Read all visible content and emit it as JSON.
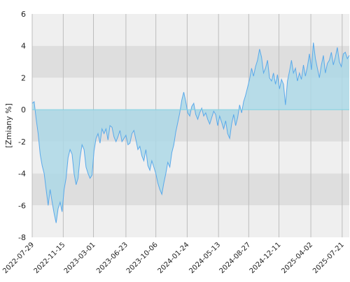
{
  "chart_data": {
    "type": "area",
    "title": "",
    "xlabel": "",
    "ylabel": "[Zmiany %]",
    "ylim": [
      -8,
      6
    ],
    "yticks": [
      6,
      4,
      2,
      0,
      -2,
      -4,
      -6,
      -8
    ],
    "x_start": "2022-07-29",
    "x_end": "2025-08-15",
    "xtick_labels": [
      "2022-07-29",
      "2022-11-15",
      "2023-03-01",
      "2023-06-23",
      "2023-10-06",
      "2024-01-24",
      "2024-05-13",
      "2024-08-27",
      "2024-12-11",
      "2025-04-02",
      "2025-07-21"
    ],
    "grid": true,
    "legend": "none",
    "colors": {
      "line": "#5aa9ea",
      "fill": "#add8e6",
      "band_light": "#efefef",
      "band_dark": "#dedede",
      "zero_line": "#7fd1e0"
    },
    "series": [
      {
        "x": [
          "2022-07-29",
          "2022-08-05",
          "2022-08-12",
          "2022-08-19",
          "2022-08-26",
          "2022-09-02",
          "2022-09-09",
          "2022-09-16",
          "2022-09-23",
          "2022-09-30",
          "2022-10-07",
          "2022-10-14",
          "2022-10-21",
          "2022-10-28",
          "2022-11-04",
          "2022-11-11",
          "2022-11-18",
          "2022-11-25",
          "2022-12-02",
          "2022-12-09",
          "2022-12-16",
          "2022-12-23",
          "2022-12-30",
          "2023-01-06",
          "2023-01-13",
          "2023-01-20",
          "2023-01-27",
          "2023-02-03",
          "2023-02-10",
          "2023-02-17",
          "2023-02-24",
          "2023-03-03",
          "2023-03-10",
          "2023-03-17",
          "2023-03-24",
          "2023-03-31",
          "2023-04-07",
          "2023-04-14",
          "2023-04-21",
          "2023-04-28",
          "2023-05-05",
          "2023-05-12",
          "2023-05-19",
          "2023-05-26",
          "2023-06-02",
          "2023-06-09",
          "2023-06-16",
          "2023-06-23",
          "2023-06-30",
          "2023-07-07",
          "2023-07-14",
          "2023-07-21",
          "2023-07-28",
          "2023-08-04",
          "2023-08-11",
          "2023-08-18",
          "2023-08-25",
          "2023-09-01",
          "2023-09-08",
          "2023-09-15",
          "2023-09-22",
          "2023-09-29",
          "2023-10-06",
          "2023-10-13",
          "2023-10-20",
          "2023-10-27",
          "2023-11-03",
          "2023-11-10",
          "2023-11-17",
          "2023-11-24",
          "2023-12-01",
          "2023-12-08",
          "2023-12-15",
          "2023-12-22",
          "2023-12-29",
          "2024-01-05",
          "2024-01-12",
          "2024-01-19",
          "2024-01-26",
          "2024-02-02",
          "2024-02-09",
          "2024-02-16",
          "2024-02-23",
          "2024-03-01",
          "2024-03-08",
          "2024-03-15",
          "2024-03-22",
          "2024-03-29",
          "2024-04-05",
          "2024-04-12",
          "2024-04-19",
          "2024-04-26",
          "2024-05-03",
          "2024-05-10",
          "2024-05-17",
          "2024-05-24",
          "2024-05-31",
          "2024-06-07",
          "2024-06-14",
          "2024-06-21",
          "2024-06-28",
          "2024-07-05",
          "2024-07-12",
          "2024-07-19",
          "2024-07-26",
          "2024-08-02",
          "2024-08-09",
          "2024-08-16",
          "2024-08-23",
          "2024-08-30",
          "2024-09-06",
          "2024-09-13",
          "2024-09-20",
          "2024-09-27",
          "2024-10-04",
          "2024-10-11",
          "2024-10-18",
          "2024-10-25",
          "2024-11-01",
          "2024-11-08",
          "2024-11-15",
          "2024-11-22",
          "2024-11-29",
          "2024-12-06",
          "2024-12-13",
          "2024-12-20",
          "2024-12-27",
          "2025-01-03",
          "2025-01-10",
          "2025-01-17",
          "2025-01-24",
          "2025-01-31",
          "2025-02-07",
          "2025-02-14",
          "2025-02-21",
          "2025-02-28",
          "2025-03-07",
          "2025-03-14",
          "2025-03-21",
          "2025-03-28",
          "2025-04-04",
          "2025-04-11",
          "2025-04-18",
          "2025-04-25",
          "2025-05-02",
          "2025-05-09",
          "2025-05-16",
          "2025-05-23",
          "2025-05-30",
          "2025-06-06",
          "2025-06-13",
          "2025-06-20",
          "2025-06-27",
          "2025-07-04",
          "2025-07-11",
          "2025-07-18",
          "2025-07-25",
          "2025-08-01",
          "2025-08-08",
          "2025-08-15"
        ],
        "y": [
          0.4,
          0.5,
          -0.6,
          -1.5,
          -2.8,
          -3.5,
          -4.0,
          -5.0,
          -6.0,
          -5.0,
          -5.8,
          -6.5,
          -7.1,
          -6.2,
          -5.8,
          -6.4,
          -5.0,
          -4.3,
          -3.0,
          -2.5,
          -2.8,
          -4.0,
          -4.7,
          -4.3,
          -3.0,
          -2.2,
          -2.5,
          -3.6,
          -4.0,
          -4.3,
          -4.1,
          -2.6,
          -1.8,
          -1.5,
          -2.1,
          -1.2,
          -1.5,
          -1.2,
          -1.9,
          -1.0,
          -1.1,
          -1.7,
          -2.0,
          -1.7,
          -1.3,
          -2.0,
          -1.8,
          -1.6,
          -2.2,
          -2.1,
          -1.5,
          -1.3,
          -1.9,
          -2.5,
          -2.3,
          -2.9,
          -3.2,
          -2.5,
          -3.5,
          -3.8,
          -3.2,
          -3.6,
          -4.0,
          -4.6,
          -5.0,
          -5.3,
          -4.6,
          -4.0,
          -3.3,
          -3.6,
          -2.7,
          -2.2,
          -1.4,
          -0.8,
          -0.2,
          0.6,
          1.1,
          0.5,
          -0.2,
          -0.4,
          0.2,
          0.4,
          -0.3,
          -0.6,
          -0.2,
          0.1,
          -0.4,
          -0.2,
          -0.6,
          -0.9,
          -0.5,
          -0.1,
          -0.3,
          -1.0,
          -0.4,
          -0.8,
          -1.2,
          -0.7,
          -1.5,
          -1.8,
          -0.9,
          -0.3,
          -1.0,
          -0.5,
          0.3,
          -0.2,
          0.5,
          0.9,
          1.4,
          1.9,
          2.6,
          2.1,
          2.7,
          3.1,
          3.8,
          3.3,
          2.3,
          2.6,
          3.1,
          2.0,
          1.8,
          2.3,
          1.6,
          2.2,
          1.3,
          1.9,
          1.6,
          0.3,
          1.8,
          2.4,
          3.1,
          2.3,
          2.6,
          1.8,
          2.3,
          1.9,
          2.8,
          2.1,
          2.7,
          3.5,
          2.5,
          4.2,
          3.2,
          2.6,
          2.0,
          2.8,
          3.4,
          2.3,
          2.9,
          3.1,
          3.6,
          2.8,
          3.3,
          3.9,
          3.0,
          2.7,
          3.5,
          3.6,
          3.2,
          3.4
        ]
      }
    ]
  }
}
